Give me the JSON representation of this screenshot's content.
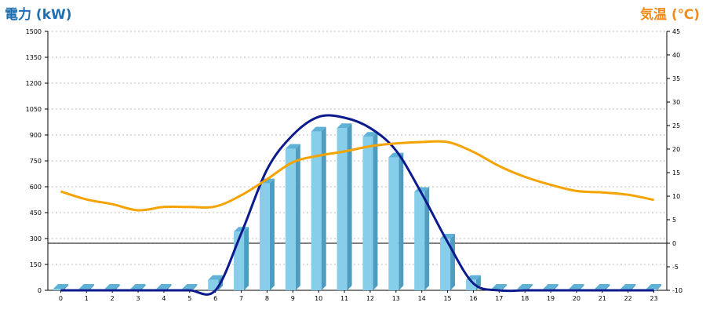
{
  "chart_data": {
    "type": "bar",
    "title_left": "電力 (kW)",
    "title_right": "気温 (℃)",
    "colors": {
      "bar_front": "#87ceeb",
      "bar_side": "#4e9cbf",
      "bar_top": "#5fb2d6",
      "power_line": "#0b1a8c",
      "temp_line": "#f5a300",
      "grid": "#bdbdbd"
    },
    "categories": [
      "0",
      "1",
      "2",
      "3",
      "4",
      "5",
      "6",
      "7",
      "8",
      "9",
      "10",
      "11",
      "12",
      "13",
      "14",
      "15",
      "16",
      "17",
      "18",
      "19",
      "20",
      "21",
      "22",
      "23"
    ],
    "left_axis": {
      "ylim": [
        0,
        1500
      ],
      "ticks": [
        "0",
        "150",
        "300",
        "450",
        "600",
        "750",
        "900",
        "1050",
        "1200",
        "1350",
        "1500"
      ]
    },
    "right_axis": {
      "ylim": [
        -10,
        45
      ],
      "ticks": [
        "-10",
        "-5",
        "0",
        "5",
        "10",
        "15",
        "20",
        "25",
        "30",
        "35",
        "40",
        "45"
      ]
    },
    "grid": true,
    "series": [
      {
        "kind": "bar",
        "axis": "left",
        "values": [
          5,
          5,
          5,
          5,
          5,
          5,
          60,
          340,
          620,
          820,
          920,
          940,
          890,
          770,
          570,
          300,
          60,
          5,
          5,
          5,
          5,
          5,
          5,
          5
        ]
      },
      {
        "kind": "line",
        "axis": "left",
        "values": [
          0,
          0,
          0,
          0,
          0,
          0,
          0,
          330,
          700,
          900,
          1005,
          1000,
          940,
          810,
          560,
          280,
          40,
          0,
          0,
          0,
          0,
          0,
          0,
          0
        ]
      },
      {
        "kind": "line",
        "axis": "right",
        "values": [
          11,
          9.3,
          8.3,
          7,
          7.7,
          7.7,
          7.8,
          10.2,
          13.6,
          17.2,
          18.6,
          19.5,
          20.6,
          21.2,
          21.5,
          21.5,
          19.4,
          16.4,
          14.1,
          12.4,
          11.1,
          10.8,
          10.3,
          9.2
        ]
      }
    ]
  }
}
